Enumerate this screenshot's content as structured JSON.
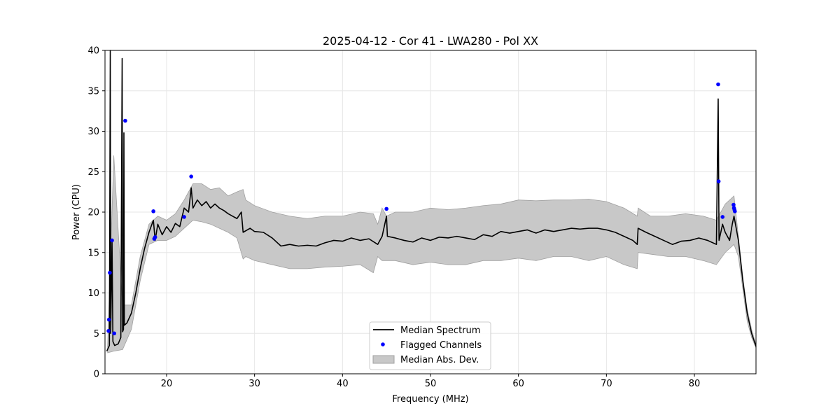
{
  "chart_data": {
    "type": "line",
    "title": "2025-04-12 - Cor 41 - LWA280 - Pol XX",
    "xlabel": "Frequency (MHz)",
    "ylabel": "Power (CPU)",
    "xlim": [
      13.0,
      87.0
    ],
    "ylim": [
      0,
      40
    ],
    "xticks": [
      20,
      30,
      40,
      50,
      60,
      70,
      80
    ],
    "yticks": [
      0,
      5,
      10,
      15,
      20,
      25,
      30,
      35,
      40
    ],
    "grid": true,
    "legend_position": "lower-center",
    "legend": [
      "Median Spectrum",
      "Flagged Channels",
      "Median Abs. Dev."
    ],
    "colors": {
      "median_line": "#000000",
      "flagged": "#0000ff",
      "mad_fill": "#c8c8c8",
      "mad_edge": "#a0a0a0",
      "grid": "#e6e6e6"
    },
    "series": [
      {
        "name": "Median Spectrum",
        "points": [
          [
            13.2,
            2.8
          ],
          [
            13.5,
            3.5
          ],
          [
            13.6,
            40
          ],
          [
            13.65,
            5
          ],
          [
            13.8,
            16.5
          ],
          [
            13.9,
            4
          ],
          [
            14.1,
            3.5
          ],
          [
            14.5,
            3.7
          ],
          [
            14.8,
            4.5
          ],
          [
            14.95,
            39
          ],
          [
            15.0,
            5.2
          ],
          [
            15.1,
            5.5
          ],
          [
            15.15,
            29.8
          ],
          [
            15.2,
            6
          ],
          [
            15.5,
            6.3
          ],
          [
            16.0,
            7.5
          ],
          [
            16.5,
            10
          ],
          [
            17.0,
            13
          ],
          [
            17.5,
            15.5
          ],
          [
            18.0,
            17.5
          ],
          [
            18.5,
            19
          ],
          [
            18.7,
            16.5
          ],
          [
            19.0,
            18.5
          ],
          [
            19.5,
            17.2
          ],
          [
            20.0,
            18.2
          ],
          [
            20.5,
            17.5
          ],
          [
            21.0,
            18.6
          ],
          [
            21.5,
            18.2
          ],
          [
            22.0,
            20.5
          ],
          [
            22.5,
            20
          ],
          [
            22.8,
            23
          ],
          [
            23.0,
            20.5
          ],
          [
            23.5,
            21.5
          ],
          [
            24.0,
            20.8
          ],
          [
            24.5,
            21.3
          ],
          [
            25.0,
            20.5
          ],
          [
            25.5,
            21
          ],
          [
            26.0,
            20.5
          ],
          [
            26.5,
            20.2
          ],
          [
            27.0,
            19.8
          ],
          [
            27.5,
            19.5
          ],
          [
            28.0,
            19.2
          ],
          [
            28.5,
            20.0
          ],
          [
            28.7,
            17.5
          ],
          [
            29.5,
            18.0
          ],
          [
            30.0,
            17.6
          ],
          [
            31.0,
            17.5
          ],
          [
            32.0,
            16.8
          ],
          [
            33.0,
            15.8
          ],
          [
            34.0,
            16.0
          ],
          [
            35.0,
            15.8
          ],
          [
            36.0,
            15.9
          ],
          [
            37.0,
            15.8
          ],
          [
            38.0,
            16.2
          ],
          [
            39.0,
            16.5
          ],
          [
            40.0,
            16.4
          ],
          [
            41.0,
            16.8
          ],
          [
            42.0,
            16.5
          ],
          [
            43.0,
            16.7
          ],
          [
            44.0,
            16.0
          ],
          [
            44.5,
            17.0
          ],
          [
            45.0,
            19.5
          ],
          [
            45.1,
            17.0
          ],
          [
            46.0,
            16.8
          ],
          [
            47.0,
            16.5
          ],
          [
            48.0,
            16.3
          ],
          [
            49.0,
            16.8
          ],
          [
            50.0,
            16.5
          ],
          [
            51.0,
            16.9
          ],
          [
            52.0,
            16.8
          ],
          [
            53.0,
            17.0
          ],
          [
            54.0,
            16.8
          ],
          [
            55.0,
            16.6
          ],
          [
            56.0,
            17.2
          ],
          [
            57.0,
            17.0
          ],
          [
            58.0,
            17.6
          ],
          [
            59.0,
            17.4
          ],
          [
            60.0,
            17.6
          ],
          [
            61.0,
            17.8
          ],
          [
            62.0,
            17.4
          ],
          [
            63.0,
            17.8
          ],
          [
            64.0,
            17.6
          ],
          [
            65.0,
            17.8
          ],
          [
            66.0,
            18.0
          ],
          [
            67.0,
            17.9
          ],
          [
            68.0,
            18.0
          ],
          [
            69.0,
            18.0
          ],
          [
            70.0,
            17.8
          ],
          [
            71.0,
            17.5
          ],
          [
            72.0,
            17.0
          ],
          [
            73.0,
            16.5
          ],
          [
            73.5,
            16.0
          ],
          [
            73.6,
            18.0
          ],
          [
            74.5,
            17.5
          ],
          [
            75.5,
            17.0
          ],
          [
            76.5,
            16.5
          ],
          [
            77.5,
            16.0
          ],
          [
            78.5,
            16.4
          ],
          [
            79.5,
            16.5
          ],
          [
            80.5,
            16.8
          ],
          [
            81.5,
            16.5
          ],
          [
            82.5,
            16.0
          ],
          [
            82.7,
            34
          ],
          [
            82.8,
            16.5
          ],
          [
            83.2,
            18.5
          ],
          [
            83.5,
            17.5
          ],
          [
            84.0,
            16.5
          ],
          [
            84.3,
            18.5
          ],
          [
            84.5,
            19.5
          ],
          [
            85.0,
            16.5
          ],
          [
            85.5,
            11.5
          ],
          [
            86.0,
            7.5
          ],
          [
            86.5,
            5
          ],
          [
            87.0,
            3.4
          ]
        ]
      },
      {
        "name": "Median Abs. Dev.",
        "x": [
          13.3,
          14.0,
          15.0,
          16.0,
          17.0,
          18.0,
          19.0,
          20.0,
          21.0,
          22.0,
          23.0,
          24.0,
          25.0,
          26.0,
          27.0,
          28.0,
          28.7,
          29.0,
          30.0,
          32.0,
          34.0,
          36.0,
          38.0,
          40.0,
          42.0,
          43.5,
          44.0,
          44.5,
          45.0,
          46.0,
          48.0,
          50.0,
          52.0,
          54.0,
          56.0,
          58.0,
          60.0,
          62.0,
          64.0,
          66.0,
          68.0,
          70.0,
          72.0,
          73.5,
          73.6,
          75.0,
          77.0,
          79.0,
          81.0,
          82.5,
          83.5,
          84.5,
          85.0,
          85.5,
          86.0,
          86.5,
          87.0
        ],
        "upper": [
          3.5,
          27.0,
          8.5,
          8.5,
          14.5,
          18.5,
          19.5,
          19.0,
          19.8,
          21.5,
          23.5,
          23.5,
          22.8,
          23.0,
          22.0,
          22.5,
          22.8,
          21.5,
          20.8,
          20.0,
          19.5,
          19.2,
          19.5,
          19.5,
          20.0,
          19.8,
          18.5,
          20.5,
          19.5,
          20.0,
          20.0,
          20.5,
          20.3,
          20.5,
          20.8,
          21.0,
          21.5,
          21.4,
          21.5,
          21.5,
          21.6,
          21.3,
          20.5,
          19.5,
          20.5,
          19.5,
          19.5,
          19.8,
          19.5,
          19.0,
          21.0,
          22.0,
          17.0,
          12.0,
          8.0,
          5.5,
          3.6
        ],
        "lower": [
          2.6,
          2.8,
          3.0,
          5.5,
          11.5,
          16.0,
          16.5,
          16.5,
          17.0,
          18.0,
          19.0,
          18.8,
          18.5,
          18.0,
          17.5,
          16.8,
          14.2,
          14.5,
          14.0,
          13.5,
          13.0,
          13.0,
          13.2,
          13.3,
          13.5,
          12.5,
          14.5,
          14.0,
          14.0,
          14.0,
          13.5,
          13.8,
          13.5,
          13.5,
          14.0,
          14.0,
          14.3,
          14.0,
          14.5,
          14.5,
          14.0,
          14.5,
          13.5,
          13.0,
          15.0,
          14.8,
          14.5,
          14.5,
          14.0,
          13.5,
          15.0,
          16.0,
          14.5,
          10.5,
          6.5,
          4.5,
          3.2
        ]
      },
      {
        "name": "Flagged Channels",
        "points": [
          [
            13.4,
            5.3
          ],
          [
            13.45,
            6.7
          ],
          [
            13.55,
            12.5
          ],
          [
            13.8,
            16.5
          ],
          [
            14.05,
            5.0
          ],
          [
            15.3,
            31.3
          ],
          [
            18.5,
            20.1
          ],
          [
            18.6,
            16.7
          ],
          [
            18.7,
            16.9
          ],
          [
            22.0,
            19.4
          ],
          [
            22.8,
            24.4
          ],
          [
            45.0,
            20.4
          ],
          [
            82.7,
            35.8
          ],
          [
            82.75,
            23.8
          ],
          [
            83.2,
            19.4
          ],
          [
            84.45,
            20.9
          ],
          [
            84.5,
            20.5
          ],
          [
            84.55,
            20.3
          ],
          [
            84.6,
            20.1
          ]
        ]
      }
    ]
  }
}
